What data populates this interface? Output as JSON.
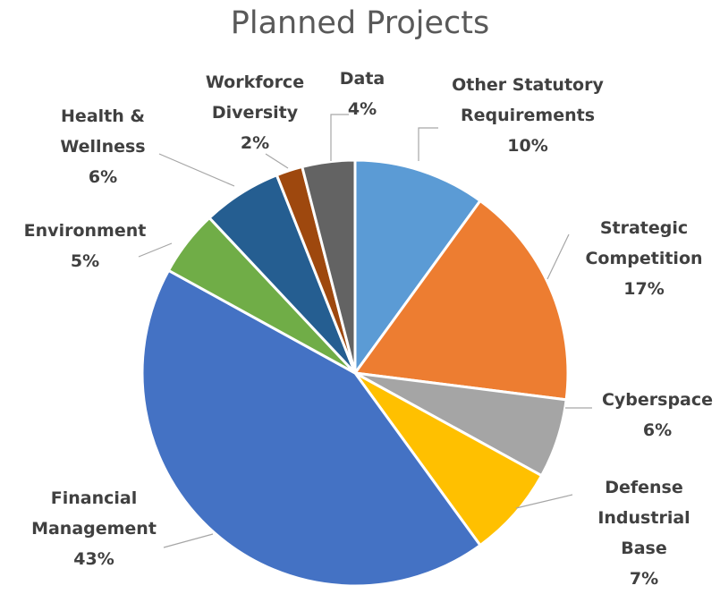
{
  "chart_data": {
    "type": "pie",
    "title": "Planned Projects",
    "categories": [
      "Other Statutory Requirements",
      "Strategic Competition",
      "Cyberspace",
      "Defense Industrial Base",
      "Financial Management",
      "Environment",
      "Health & Wellness",
      "Workforce Diversity",
      "Data"
    ],
    "values": [
      10,
      17,
      6,
      7,
      43,
      5,
      6,
      2,
      4
    ],
    "value_labels": [
      "10%",
      "17%",
      "6%",
      "7%",
      "43%",
      "5%",
      "6%",
      "2%",
      "4%"
    ],
    "colors": [
      "#5b9bd5",
      "#ed7d31",
      "#a5a5a5",
      "#ffc000",
      "#4472c4",
      "#70ad47",
      "#255e91",
      "#9e480e",
      "#636363"
    ]
  }
}
